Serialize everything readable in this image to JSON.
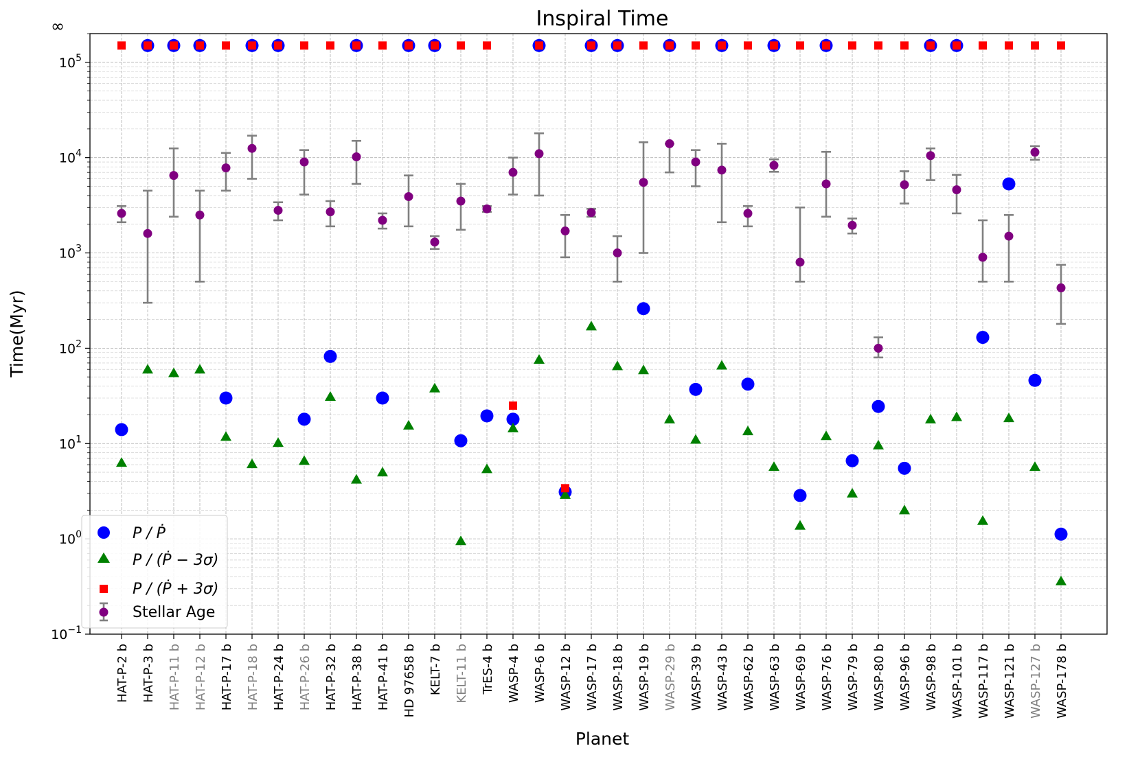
{
  "chart_data": {
    "type": "scatter",
    "title": "Inspiral Time",
    "xlabel": "Planet",
    "ylabel": "Time(Myr)",
    "yscale": "log",
    "ylim": [
      0.1,
      200000
    ],
    "infinity_label": "∞",
    "y_ticks": [
      {
        "base": "10",
        "exp": "−1",
        "value": 0.1
      },
      {
        "base": "10",
        "exp": "0",
        "value": 1
      },
      {
        "base": "10",
        "exp": "1",
        "value": 10
      },
      {
        "base": "10",
        "exp": "2",
        "value": 100
      },
      {
        "base": "10",
        "exp": "3",
        "value": 1000
      },
      {
        "base": "10",
        "exp": "4",
        "value": 10000
      },
      {
        "base": "10",
        "exp": "5",
        "value": 100000
      }
    ],
    "infinity_value": 150000,
    "categories": [
      "HAT-P-2 b",
      "HAT-P-3 b",
      "HAT-P-11 b",
      "HAT-P-12 b",
      "HAT-P-17 b",
      "HAT-P-18 b",
      "HAT-P-24 b",
      "HAT-P-26 b",
      "HAT-P-32 b",
      "HAT-P-38 b",
      "HAT-P-41 b",
      "HD 97658 b",
      "KELT-7 b",
      "KELT-11 b",
      "TrES-4 b",
      "WASP-4 b",
      "WASP-6 b",
      "WASP-12 b",
      "WASP-17 b",
      "WASP-18 b",
      "WASP-19 b",
      "WASP-29 b",
      "WASP-39 b",
      "WASP-43 b",
      "WASP-62 b",
      "WASP-63 b",
      "WASP-69 b",
      "WASP-76 b",
      "WASP-79 b",
      "WASP-80 b",
      "WASP-96 b",
      "WASP-98 b",
      "WASP-101 b",
      "WASP-117 b",
      "WASP-121 b",
      "WASP-127 b",
      "WASP-178 b"
    ],
    "category_gray": [
      false,
      false,
      true,
      true,
      false,
      true,
      false,
      true,
      false,
      false,
      false,
      false,
      false,
      true,
      false,
      false,
      false,
      false,
      false,
      false,
      false,
      true,
      false,
      false,
      false,
      false,
      false,
      false,
      false,
      false,
      false,
      false,
      false,
      false,
      false,
      true,
      false
    ],
    "label_colors": {
      "normal": "#000000",
      "gray": "#808080"
    },
    "series": [
      {
        "name": "P / Ṗ",
        "marker": "circle",
        "color": "#0000ff",
        "values": [
          14,
          "inf",
          "inf",
          "inf",
          30,
          "inf",
          "inf",
          18,
          82,
          "inf",
          30,
          "inf",
          "inf",
          10.7,
          19.5,
          18,
          "inf",
          3.1,
          "inf",
          "inf",
          260,
          "inf",
          37,
          "inf",
          42,
          "inf",
          2.85,
          "inf",
          6.6,
          24.5,
          5.5,
          "inf",
          "inf",
          130,
          5300,
          46,
          1.12
        ]
      },
      {
        "name": "P / (Ṗ − 3σ)",
        "marker": "triangle",
        "color": "#008000",
        "values": [
          6.3,
          60,
          55,
          60,
          11.8,
          6.1,
          10.2,
          6.6,
          31,
          4.2,
          5,
          15.5,
          38,
          0.95,
          5.4,
          14.5,
          76,
          2.9,
          170,
          65,
          59,
          18,
          11,
          66,
          13.5,
          5.7,
          1.38,
          12,
          3,
          9.6,
          2,
          18,
          19,
          1.55,
          18.5,
          5.7,
          0.36
        ]
      },
      {
        "name": "P / (Ṗ + 3σ)",
        "marker": "square",
        "color": "#ff0000",
        "values": [
          "inf",
          "inf",
          "inf",
          "inf",
          "inf",
          "inf",
          "inf",
          "inf",
          "inf",
          "inf",
          "inf",
          "inf",
          "inf",
          "inf",
          "inf",
          25,
          "inf",
          3.4,
          "inf",
          "inf",
          "inf",
          "inf",
          "inf",
          "inf",
          "inf",
          "inf",
          "inf",
          "inf",
          "inf",
          "inf",
          "inf",
          "inf",
          "inf",
          "inf",
          "inf",
          "inf",
          "inf"
        ]
      },
      {
        "name": "Stellar Age",
        "marker": "errorbar",
        "color": "#800080",
        "error_color": "#808080",
        "values": [
          2600,
          1600,
          6500,
          2500,
          7800,
          12500,
          2800,
          9000,
          2700,
          10200,
          2200,
          3900,
          1300,
          3500,
          2900,
          7000,
          11000,
          1700,
          2650,
          1000,
          5500,
          14000,
          9000,
          7400,
          2600,
          8300,
          800,
          5300,
          1950,
          100,
          5200,
          10500,
          4600,
          900,
          1500,
          11400,
          430
        ],
        "lower": [
          2100,
          300,
          2400,
          500,
          4500,
          6000,
          2200,
          4100,
          1900,
          5300,
          1800,
          1900,
          1100,
          1750,
          2700,
          4100,
          4000,
          900,
          2400,
          500,
          1000,
          7000,
          5000,
          2100,
          1900,
          7100,
          500,
          2400,
          1600,
          80,
          3300,
          5800,
          2600,
          500,
          500,
          9500,
          180
        ],
        "upper": [
          3100,
          4500,
          12500,
          4500,
          11200,
          17000,
          3400,
          12000,
          3500,
          15000,
          2600,
          6500,
          1500,
          5300,
          3100,
          10000,
          18000,
          2500,
          2900,
          1500,
          14500,
          14000,
          12000,
          14000,
          3100,
          9600,
          3000,
          11500,
          2300,
          130,
          7200,
          12500,
          6600,
          2200,
          2500,
          13200,
          750
        ]
      }
    ],
    "legend_position": "lower-left"
  }
}
